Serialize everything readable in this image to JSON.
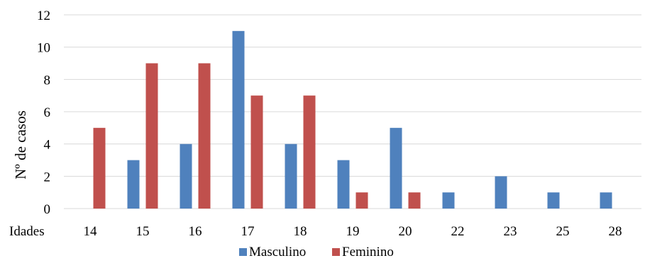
{
  "chart_data": {
    "type": "bar",
    "categories": [
      "14",
      "15",
      "16",
      "17",
      "18",
      "19",
      "20",
      "22",
      "23",
      "25",
      "28"
    ],
    "series": [
      {
        "name": "Masculino",
        "color": "#4f81bd",
        "values": [
          0,
          3,
          4,
          11,
          4,
          3,
          5,
          1,
          2,
          1,
          1
        ]
      },
      {
        "name": "Feminino",
        "color": "#c0504d",
        "values": [
          5,
          9,
          9,
          7,
          7,
          1,
          1,
          0,
          0,
          0,
          0
        ]
      }
    ],
    "title": "",
    "xlabel": "Idades",
    "ylabel": "Nº de casos",
    "ylim": [
      0,
      12
    ],
    "yticks": [
      0,
      2,
      4,
      6,
      8,
      10,
      12
    ],
    "grid": true,
    "legend_position": "bottom"
  }
}
